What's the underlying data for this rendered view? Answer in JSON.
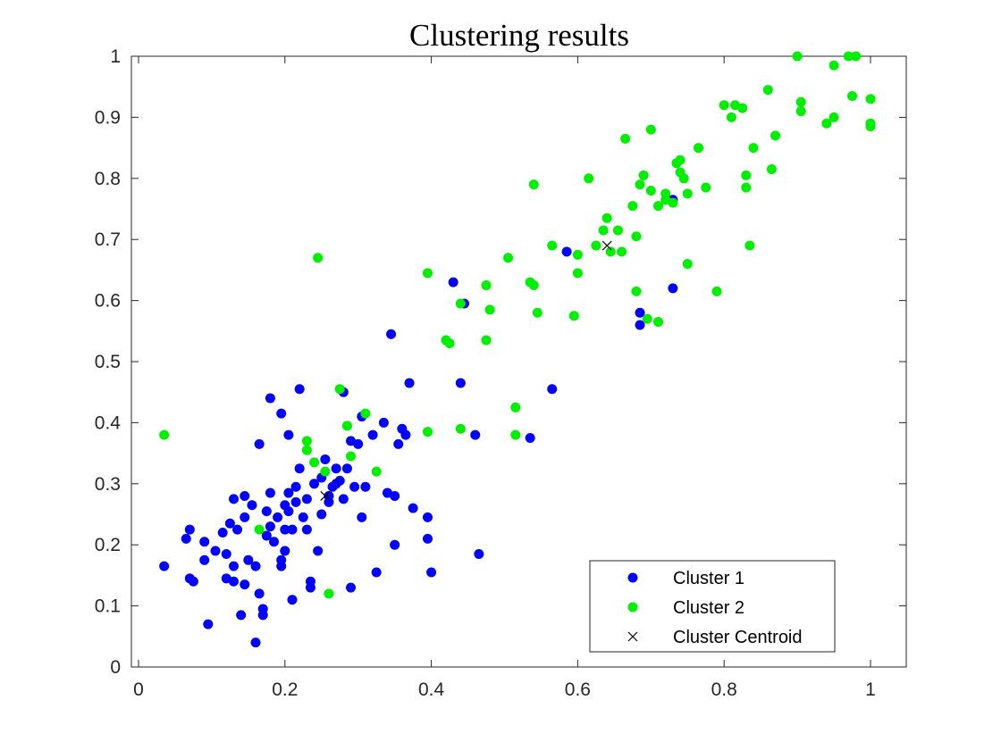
{
  "chart_data": {
    "type": "scatter",
    "title": "Clustering results",
    "xlabel": "",
    "ylabel": "",
    "xlim": [
      0,
      1
    ],
    "ylim": [
      0,
      1
    ],
    "x_ticks": [
      "0",
      "0.2",
      "0.4",
      "0.6",
      "0.8",
      "1"
    ],
    "y_ticks": [
      "0",
      "0.1",
      "0.2",
      "0.3",
      "0.4",
      "0.5",
      "0.6",
      "0.7",
      "0.8",
      "0.9",
      "1"
    ],
    "grid": false,
    "legend_position": "bottom-right",
    "series": [
      {
        "name": "Cluster 1",
        "color": "#0000ff",
        "marker": "dot",
        "points": [
          [
            0.035,
            0.165
          ],
          [
            0.065,
            0.21
          ],
          [
            0.07,
            0.225
          ],
          [
            0.07,
            0.145
          ],
          [
            0.075,
            0.14
          ],
          [
            0.09,
            0.175
          ],
          [
            0.09,
            0.205
          ],
          [
            0.095,
            0.07
          ],
          [
            0.105,
            0.19
          ],
          [
            0.115,
            0.22
          ],
          [
            0.12,
            0.145
          ],
          [
            0.12,
            0.185
          ],
          [
            0.125,
            0.235
          ],
          [
            0.13,
            0.14
          ],
          [
            0.13,
            0.165
          ],
          [
            0.13,
            0.275
          ],
          [
            0.135,
            0.225
          ],
          [
            0.14,
            0.085
          ],
          [
            0.145,
            0.135
          ],
          [
            0.145,
            0.245
          ],
          [
            0.145,
            0.28
          ],
          [
            0.15,
            0.175
          ],
          [
            0.155,
            0.265
          ],
          [
            0.16,
            0.04
          ],
          [
            0.16,
            0.165
          ],
          [
            0.165,
            0.12
          ],
          [
            0.165,
            0.365
          ],
          [
            0.17,
            0.085
          ],
          [
            0.17,
            0.095
          ],
          [
            0.175,
            0.215
          ],
          [
            0.175,
            0.255
          ],
          [
            0.18,
            0.23
          ],
          [
            0.18,
            0.285
          ],
          [
            0.18,
            0.44
          ],
          [
            0.185,
            0.205
          ],
          [
            0.19,
            0.245
          ],
          [
            0.195,
            0.165
          ],
          [
            0.195,
            0.175
          ],
          [
            0.195,
            0.415
          ],
          [
            0.2,
            0.19
          ],
          [
            0.2,
            0.225
          ],
          [
            0.2,
            0.265
          ],
          [
            0.205,
            0.255
          ],
          [
            0.205,
            0.285
          ],
          [
            0.205,
            0.38
          ],
          [
            0.21,
            0.11
          ],
          [
            0.21,
            0.225
          ],
          [
            0.215,
            0.27
          ],
          [
            0.215,
            0.295
          ],
          [
            0.22,
            0.455
          ],
          [
            0.22,
            0.325
          ],
          [
            0.225,
            0.245
          ],
          [
            0.23,
            0.225
          ],
          [
            0.23,
            0.275
          ],
          [
            0.235,
            0.14
          ],
          [
            0.235,
            0.13
          ],
          [
            0.24,
            0.3
          ],
          [
            0.245,
            0.19
          ],
          [
            0.25,
            0.31
          ],
          [
            0.25,
            0.25
          ],
          [
            0.255,
            0.34
          ],
          [
            0.26,
            0.28
          ],
          [
            0.26,
            0.27
          ],
          [
            0.265,
            0.295
          ],
          [
            0.27,
            0.3
          ],
          [
            0.27,
            0.325
          ],
          [
            0.275,
            0.305
          ],
          [
            0.28,
            0.275
          ],
          [
            0.28,
            0.45
          ],
          [
            0.285,
            0.325
          ],
          [
            0.29,
            0.13
          ],
          [
            0.29,
            0.37
          ],
          [
            0.295,
            0.295
          ],
          [
            0.3,
            0.365
          ],
          [
            0.305,
            0.245
          ],
          [
            0.305,
            0.41
          ],
          [
            0.31,
            0.295
          ],
          [
            0.32,
            0.38
          ],
          [
            0.325,
            0.155
          ],
          [
            0.335,
            0.4
          ],
          [
            0.34,
            0.285
          ],
          [
            0.345,
            0.545
          ],
          [
            0.35,
            0.28
          ],
          [
            0.35,
            0.2
          ],
          [
            0.355,
            0.365
          ],
          [
            0.36,
            0.39
          ],
          [
            0.365,
            0.38
          ],
          [
            0.37,
            0.465
          ],
          [
            0.375,
            0.26
          ],
          [
            0.395,
            0.245
          ],
          [
            0.395,
            0.21
          ],
          [
            0.4,
            0.155
          ],
          [
            0.43,
            0.63
          ],
          [
            0.44,
            0.465
          ],
          [
            0.445,
            0.595
          ],
          [
            0.46,
            0.38
          ],
          [
            0.465,
            0.185
          ],
          [
            0.535,
            0.375
          ],
          [
            0.565,
            0.455
          ],
          [
            0.585,
            0.68
          ],
          [
            0.685,
            0.56
          ],
          [
            0.685,
            0.58
          ],
          [
            0.73,
            0.62
          ],
          [
            0.73,
            0.765
          ]
        ]
      },
      {
        "name": "Cluster 2",
        "color": "#00ee00",
        "marker": "dot",
        "points": [
          [
            0.035,
            0.38
          ],
          [
            0.165,
            0.225
          ],
          [
            0.23,
            0.37
          ],
          [
            0.23,
            0.355
          ],
          [
            0.24,
            0.335
          ],
          [
            0.245,
            0.67
          ],
          [
            0.255,
            0.32
          ],
          [
            0.26,
            0.12
          ],
          [
            0.275,
            0.455
          ],
          [
            0.285,
            0.395
          ],
          [
            0.29,
            0.345
          ],
          [
            0.31,
            0.415
          ],
          [
            0.325,
            0.32
          ],
          [
            0.395,
            0.645
          ],
          [
            0.395,
            0.385
          ],
          [
            0.42,
            0.535
          ],
          [
            0.425,
            0.53
          ],
          [
            0.44,
            0.39
          ],
          [
            0.44,
            0.595
          ],
          [
            0.475,
            0.625
          ],
          [
            0.475,
            0.535
          ],
          [
            0.48,
            0.585
          ],
          [
            0.505,
            0.67
          ],
          [
            0.515,
            0.425
          ],
          [
            0.515,
            0.38
          ],
          [
            0.535,
            0.63
          ],
          [
            0.54,
            0.79
          ],
          [
            0.54,
            0.625
          ],
          [
            0.545,
            0.58
          ],
          [
            0.565,
            0.69
          ],
          [
            0.595,
            0.575
          ],
          [
            0.6,
            0.675
          ],
          [
            0.6,
            0.645
          ],
          [
            0.615,
            0.8
          ],
          [
            0.625,
            0.69
          ],
          [
            0.635,
            0.715
          ],
          [
            0.64,
            0.735
          ],
          [
            0.645,
            0.68
          ],
          [
            0.655,
            0.715
          ],
          [
            0.66,
            0.68
          ],
          [
            0.665,
            0.865
          ],
          [
            0.675,
            0.755
          ],
          [
            0.68,
            0.705
          ],
          [
            0.68,
            0.615
          ],
          [
            0.685,
            0.79
          ],
          [
            0.69,
            0.805
          ],
          [
            0.695,
            0.57
          ],
          [
            0.7,
            0.88
          ],
          [
            0.7,
            0.78
          ],
          [
            0.71,
            0.565
          ],
          [
            0.71,
            0.755
          ],
          [
            0.72,
            0.775
          ],
          [
            0.72,
            0.765
          ],
          [
            0.73,
            0.76
          ],
          [
            0.735,
            0.825
          ],
          [
            0.74,
            0.83
          ],
          [
            0.74,
            0.81
          ],
          [
            0.745,
            0.8
          ],
          [
            0.75,
            0.775
          ],
          [
            0.75,
            0.66
          ],
          [
            0.765,
            0.85
          ],
          [
            0.775,
            0.785
          ],
          [
            0.79,
            0.615
          ],
          [
            0.8,
            0.92
          ],
          [
            0.81,
            0.9
          ],
          [
            0.815,
            0.92
          ],
          [
            0.825,
            0.915
          ],
          [
            0.83,
            0.785
          ],
          [
            0.83,
            0.805
          ],
          [
            0.835,
            0.69
          ],
          [
            0.84,
            0.85
          ],
          [
            0.86,
            0.945
          ],
          [
            0.865,
            0.815
          ],
          [
            0.87,
            0.87
          ],
          [
            0.9,
            1.0
          ],
          [
            0.905,
            0.91
          ],
          [
            0.905,
            0.925
          ],
          [
            0.94,
            0.89
          ],
          [
            0.95,
            0.9
          ],
          [
            0.95,
            0.985
          ],
          [
            0.97,
            1.0
          ],
          [
            0.975,
            0.935
          ],
          [
            0.98,
            1.0
          ],
          [
            1.0,
            0.93
          ],
          [
            1.0,
            0.89
          ],
          [
            1.0,
            0.885
          ]
        ]
      },
      {
        "name": "Cluster Centroid",
        "color": "#000000",
        "marker": "x",
        "points": [
          [
            0.255,
            0.28
          ],
          [
            0.64,
            0.69
          ]
        ]
      }
    ]
  }
}
